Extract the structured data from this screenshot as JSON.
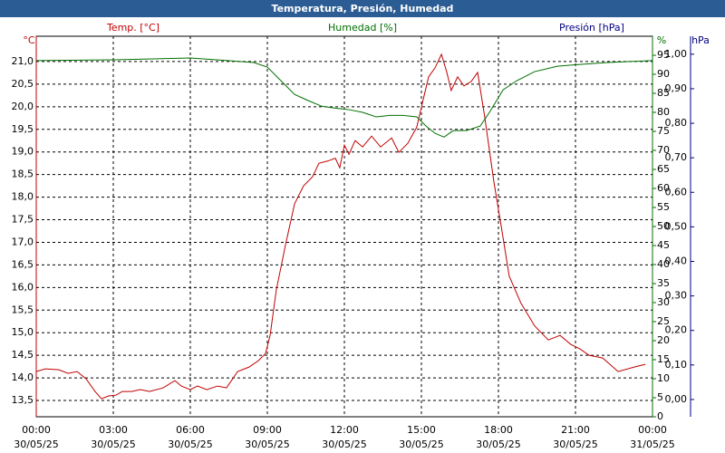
{
  "chart_data": {
    "type": "line",
    "title": "Temperatura, Presión, Humedad",
    "ylabel": "Temp. [°C]",
    "yunit": "°C",
    "ycolor": "#c00000",
    "y2label": "Humedad [%]",
    "y2unit": "%",
    "y2color": "#007000",
    "y3label": "Presión [hPa]",
    "y3unit": "hPa",
    "y3color": "#000080",
    "grid": true,
    "xlim": [
      0,
      24
    ],
    "xticks": [
      {
        "value": 0,
        "label": "00:00"
      },
      {
        "value": 3,
        "label": "03:00"
      },
      {
        "value": 6,
        "label": "06:00"
      },
      {
        "value": 9,
        "label": "09:00"
      },
      {
        "value": 12,
        "label": "12:00"
      },
      {
        "value": 15,
        "label": "15:00"
      },
      {
        "value": 18,
        "label": "18:00"
      },
      {
        "value": 21,
        "label": "21:00"
      },
      {
        "value": 24,
        "label": "00:00"
      }
    ],
    "xtick_dates": [
      "30/05/25",
      "30/05/25",
      "30/05/25",
      "30/05/25",
      "30/05/25",
      "30/05/25",
      "30/05/25",
      "30/05/25",
      "31/05/25"
    ],
    "ylim": [
      13.14,
      21.56
    ],
    "yticks": [
      {
        "value": 13.5,
        "label": "13,5"
      },
      {
        "value": 14,
        "label": "14,0"
      },
      {
        "value": 14.5,
        "label": "14,5"
      },
      {
        "value": 15,
        "label": "15,0"
      },
      {
        "value": 15.5,
        "label": "15,5"
      },
      {
        "value": 16,
        "label": "16,0"
      },
      {
        "value": 16.5,
        "label": "16,5"
      },
      {
        "value": 17,
        "label": "17,0"
      },
      {
        "value": 17.5,
        "label": "17,5"
      },
      {
        "value": 18,
        "label": "18,0"
      },
      {
        "value": 18.5,
        "label": "18,5"
      },
      {
        "value": 19,
        "label": "19,0"
      },
      {
        "value": 19.5,
        "label": "19,5"
      },
      {
        "value": 20,
        "label": "20,0"
      },
      {
        "value": 20.5,
        "label": "20,5"
      },
      {
        "value": 21,
        "label": "21,0"
      }
    ],
    "y2lim": [
      0,
      100
    ],
    "y2ticks": [
      0,
      5,
      10,
      15,
      20,
      25,
      30,
      35,
      40,
      45,
      50,
      55,
      60,
      65,
      70,
      75,
      80,
      85,
      90,
      95
    ],
    "y3lim": [
      -0.05,
      1.052
    ],
    "y3ticks": [
      {
        "value": 0,
        "label": "0,00"
      },
      {
        "value": 0.1,
        "label": "0,10"
      },
      {
        "value": 0.2,
        "label": "0,20"
      },
      {
        "value": 0.3,
        "label": "0,30"
      },
      {
        "value": 0.4,
        "label": "0,40"
      },
      {
        "value": 0.5,
        "label": "0,50"
      },
      {
        "value": 0.6,
        "label": "0,60"
      },
      {
        "value": 0.7,
        "label": "0,70"
      },
      {
        "value": 0.8,
        "label": "0,80"
      },
      {
        "value": 0.9,
        "label": "0,90"
      },
      {
        "value": 1,
        "label": "1,00"
      }
    ],
    "series": [
      {
        "color": "#c00000",
        "x": [
          0,
          0.35,
          0.88,
          1.24,
          1.59,
          1.94,
          2.29,
          2.54,
          2.82,
          3.11,
          3.35,
          3.71,
          4.06,
          4.41,
          4.94,
          5.4,
          5.65,
          6.0,
          6.28,
          6.64,
          7.06,
          7.41,
          7.84,
          8.29,
          8.65,
          8.93,
          9.11,
          9.35,
          9.71,
          10.06,
          10.41,
          10.76,
          11.01,
          11.36,
          11.65,
          11.82,
          12.0,
          12.18,
          12.42,
          12.71,
          13.06,
          13.41,
          13.84,
          14.12,
          14.47,
          14.82,
          15.07,
          15.28,
          15.53,
          15.78,
          15.99,
          16.16,
          16.41,
          16.66,
          16.94,
          17.19,
          17.47,
          17.82,
          18.11,
          18.42,
          18.88,
          19.41,
          19.94,
          20.4,
          20.82,
          21.18,
          21.53,
          22.06,
          22.66,
          23.29,
          23.72
        ],
        "values": [
          14.14,
          14.2,
          14.18,
          14.1,
          14.14,
          13.98,
          13.7,
          13.54,
          13.6,
          13.62,
          13.7,
          13.7,
          13.74,
          13.7,
          13.78,
          13.94,
          13.82,
          13.74,
          13.82,
          13.74,
          13.82,
          13.78,
          14.14,
          14.24,
          14.38,
          14.54,
          14.95,
          15.95,
          16.95,
          17.85,
          18.25,
          18.45,
          18.75,
          18.8,
          18.86,
          18.65,
          19.15,
          18.95,
          19.25,
          19.11,
          19.35,
          19.11,
          19.31,
          18.99,
          19.19,
          19.55,
          20.16,
          20.66,
          20.86,
          21.16,
          20.76,
          20.36,
          20.66,
          20.46,
          20.56,
          20.76,
          19.76,
          18.35,
          17.35,
          16.25,
          15.65,
          15.15,
          14.84,
          14.94,
          14.74,
          14.64,
          14.5,
          14.44,
          14.14,
          14.24,
          14.3
        ]
      },
      {
        "color": "#007000",
        "axis": "y2",
        "x": [
          0,
          3,
          6,
          8.47,
          9.0,
          9.53,
          10.06,
          10.59,
          11.12,
          11.65,
          12.18,
          12.71,
          13.24,
          13.76,
          14.29,
          14.82,
          15.18,
          15.53,
          15.88,
          16.24,
          16.76,
          17.29,
          17.65,
          18.18,
          18.71,
          19.41,
          20.29,
          21.18,
          22.24,
          24
        ],
        "values": [
          93.6,
          93.8,
          94.3,
          93.1,
          91.9,
          88.3,
          84.7,
          83.1,
          81.6,
          81.1,
          80.7,
          80.0,
          78.8,
          79.2,
          79.2,
          78.8,
          76.4,
          74.5,
          73.5,
          75.2,
          75.2,
          76.4,
          80.0,
          85.9,
          88.3,
          90.7,
          92.1,
          92.6,
          93.1,
          93.6
        ]
      }
    ]
  }
}
